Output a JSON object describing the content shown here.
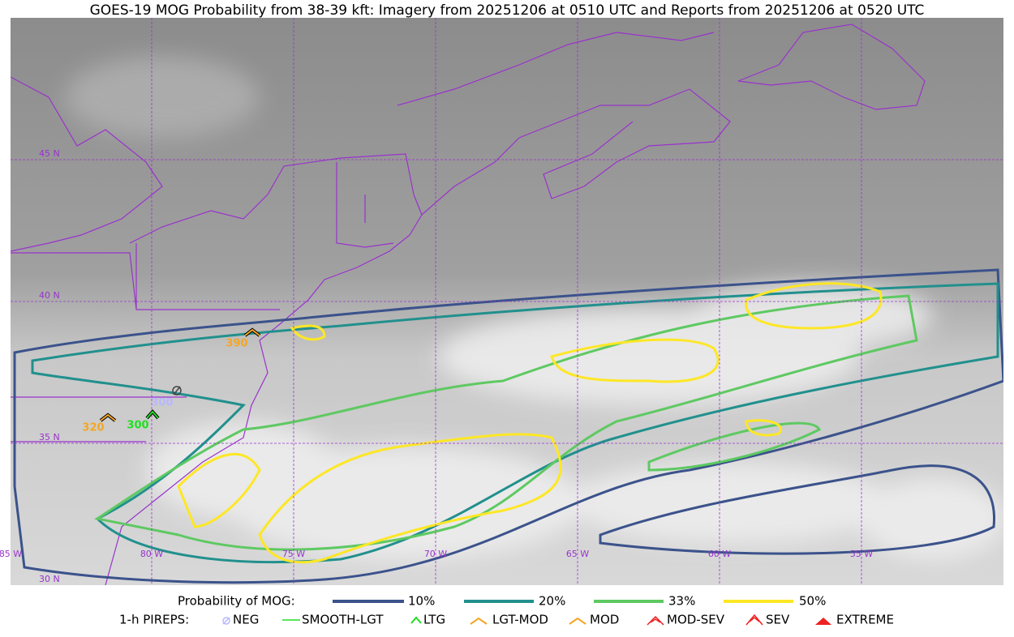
{
  "title": "GOES-19 MOG Probability from 38-39 kft: Imagery from 20251206 at 0510 UTC and Reports from 20251206 at 0520 UTC",
  "grid_labels": {
    "lat": [
      "45 N",
      "40 N",
      "35 N",
      "30 N"
    ],
    "lon": [
      "85 W",
      "80 W",
      "75 W",
      "70 W",
      "65 W",
      "60 W",
      "55 W"
    ]
  },
  "reports": [
    "390",
    "300",
    "320",
    "300"
  ],
  "legend": {
    "prob_title": "Probability of MOG:",
    "prob_items": [
      "10%",
      "20%",
      "33%",
      "50%"
    ],
    "pirep_title": "1-h PIREPS:",
    "pirep_items": [
      "NEG",
      "SMOOTH-LGT",
      "LTG",
      "LGT-MOD",
      "MOD",
      "MOD-SEV",
      "SEV",
      "EXTREME"
    ]
  }
}
